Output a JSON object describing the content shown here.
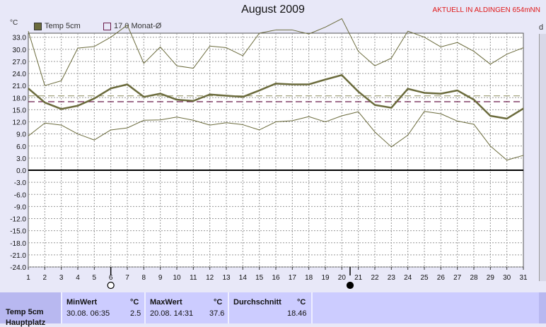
{
  "title": "August 2009",
  "badge": "AKTUELL IN ALDINGEN 654mNN",
  "unit_label_left": "°C",
  "unit_label_right": "d",
  "legend": [
    {
      "label": "Temp 5cm",
      "color": "#6b6b3c"
    },
    {
      "label": "17.0 Monat-Ø",
      "color": "#6a1a4a"
    }
  ],
  "chart_data": {
    "type": "line",
    "title": "August 2009",
    "x": [
      1,
      2,
      3,
      4,
      5,
      6,
      7,
      8,
      9,
      10,
      11,
      12,
      13,
      14,
      15,
      16,
      17,
      18,
      19,
      20,
      21,
      22,
      23,
      24,
      25,
      26,
      27,
      28,
      29,
      30,
      31
    ],
    "xlim": [
      1,
      31
    ],
    "ylim": [
      -24,
      34
    ],
    "yticks": [
      33,
      30,
      27,
      24,
      21,
      18,
      15,
      12,
      9,
      6,
      3,
      0,
      -3,
      -6,
      -9,
      -12,
      -15,
      -18,
      -21,
      -24
    ],
    "ytick_labels": [
      "33.0",
      "30.0",
      "27.0",
      "24.0",
      "21.0",
      "18.0",
      "15.0",
      "12.0",
      "9.0",
      "6.0",
      "3.0",
      "0.0",
      "-3.0",
      "-6.0",
      "-9.0",
      "-12.0",
      "-15.0",
      "-18.0",
      "-21.0",
      "-24.0"
    ],
    "grid": true,
    "series": [
      {
        "name": "Temp 5cm",
        "color": "#6b6b3c",
        "width": 2.5,
        "values": [
          20.3,
          16.8,
          15.2,
          16.0,
          17.8,
          20.3,
          21.3,
          18.2,
          19.0,
          17.5,
          17.2,
          18.8,
          18.5,
          18.2,
          19.8,
          21.5,
          21.3,
          21.3,
          22.5,
          23.6,
          19.5,
          16.2,
          15.5,
          20.2,
          19.2,
          19.0,
          19.8,
          17.5,
          13.5,
          12.8,
          15.3
        ]
      },
      {
        "name": "Max",
        "color": "#6b6b3c",
        "width": 1,
        "values": [
          34.5,
          21.0,
          22.2,
          30.3,
          30.7,
          33.0,
          36.0,
          26.5,
          30.6,
          25.9,
          25.3,
          30.8,
          30.4,
          28.4,
          34.0,
          34.8,
          34.8,
          33.8,
          35.5,
          37.6,
          29.5,
          25.9,
          27.8,
          34.5,
          33.0,
          30.6,
          31.7,
          29.5,
          26.3,
          28.8,
          30.4
        ]
      },
      {
        "name": "Min",
        "color": "#6b6b3c",
        "width": 1,
        "values": [
          8.5,
          11.7,
          11.2,
          9.0,
          7.5,
          10.0,
          10.5,
          12.4,
          12.5,
          13.2,
          12.4,
          11.2,
          11.8,
          11.3,
          10.0,
          12.0,
          12.3,
          13.3,
          12.0,
          13.5,
          14.5,
          9.5,
          5.8,
          8.7,
          14.6,
          14.0,
          12.2,
          11.4,
          6.0,
          2.5,
          3.7
        ]
      }
    ],
    "reference_lines": [
      {
        "label": "17.0 Monat-Ø",
        "value": 17.0,
        "color": "#6a1a4a",
        "dash": true
      },
      {
        "label": "18.46",
        "value": 18.46,
        "color": "#9a9a70",
        "dash": true
      }
    ],
    "moon_phases": [
      {
        "day": 6,
        "phase": "full"
      },
      {
        "day": 20.5,
        "phase": "new"
      }
    ]
  },
  "table": {
    "row_label": "Temp 5cm",
    "row_label2": "Hauptplatz",
    "min": {
      "header": "MinWert",
      "unit": "°C",
      "time": "30.08.  06:35",
      "value": "2.5"
    },
    "max": {
      "header": "MaxWert",
      "unit": "°C",
      "time": "20.08.  14:31",
      "value": "37.6"
    },
    "avg": {
      "header": "Durchschnitt",
      "unit": "°C",
      "value": "18.46"
    }
  }
}
